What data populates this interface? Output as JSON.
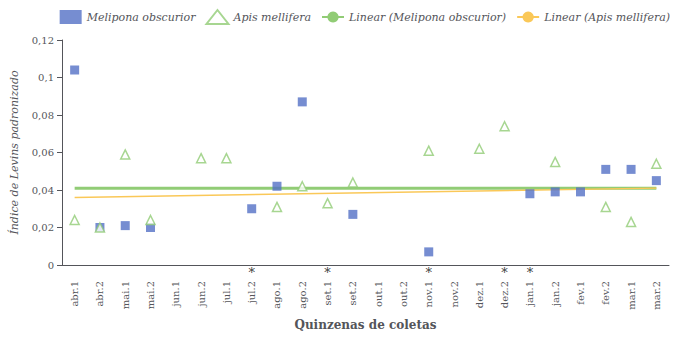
{
  "chart_data": {
    "type": "scatter",
    "categories": [
      "abr.1",
      "abr.2",
      "mai.1",
      "mai.2",
      "jun.1",
      "jun.2",
      "jul.1",
      "jul.2",
      "ago.1",
      "ago.2",
      "set.1",
      "set.2",
      "out.1",
      "out.2",
      "nov.1",
      "nov.2",
      "dez.1",
      "dez.2",
      "jan.1",
      "jan.2",
      "fev.1",
      "fev.2",
      "mar.1",
      "mar.2"
    ],
    "xlabel": "Quinzenas de coletas",
    "ylabel": "Índice de Levins padronizado",
    "ylim": [
      0,
      0.12
    ],
    "yticks": [
      0,
      {
        "value": 0.02,
        "label": "0,02"
      },
      {
        "value": 0.04,
        "label": "0,04"
      },
      {
        "value": 0.06,
        "label": "0,06"
      },
      {
        "value": 0.08,
        "label": "0,08"
      },
      {
        "value": 0.1,
        "label": "0,1"
      },
      {
        "value": 0.12,
        "label": "0,12"
      }
    ],
    "grid": false,
    "legend": "upper right",
    "series": [
      {
        "name": "Melipona obscurior",
        "type": "scatter",
        "marker": "square",
        "values": [
          0.104,
          0.02,
          0.021,
          0.02,
          null,
          null,
          null,
          0.03,
          0.042,
          0.087,
          null,
          0.027,
          null,
          null,
          0.007,
          null,
          null,
          null,
          0.038,
          0.039,
          0.039,
          0.051,
          0.051,
          0.045
        ]
      },
      {
        "name": "Apis mellifera",
        "type": "scatter",
        "marker": "open_triangle",
        "values": [
          0.024,
          0.02,
          0.059,
          0.024,
          null,
          0.057,
          0.057,
          null,
          0.031,
          0.042,
          0.033,
          0.044,
          null,
          null,
          0.061,
          null,
          0.062,
          0.074,
          null,
          0.055,
          null,
          0.031,
          0.023,
          0.054
        ]
      },
      {
        "name": "Linear (Melipona obscurior)",
        "type": "line",
        "line_style": "thick",
        "x": [
          "abr.1",
          "mar.2"
        ],
        "values": [
          0.041,
          0.041
        ]
      },
      {
        "name": "Linear (Apis mellifera)",
        "type": "line",
        "line_style": "thin",
        "x": [
          "abr.1",
          "mar.2"
        ],
        "values": [
          0.036,
          0.041
        ]
      }
    ],
    "annotations": [
      {
        "x": "jul.2",
        "y": 0,
        "text": "*"
      },
      {
        "x": "set.1",
        "y": 0,
        "text": "*"
      },
      {
        "x": "nov.1",
        "y": 0,
        "text": "*"
      },
      {
        "x": "dez.2",
        "y": 0,
        "text": "*"
      },
      {
        "x": "jan.1",
        "y": 0,
        "text": "*"
      }
    ]
  }
}
